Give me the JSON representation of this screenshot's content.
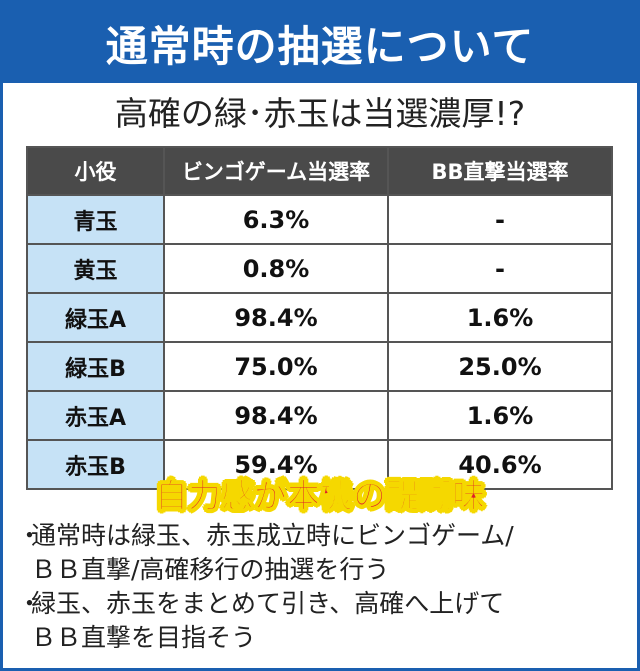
{
  "header": {
    "title": "通常時の抽選について"
  },
  "subtitle": "高確の緑･赤玉は当選濃厚!?",
  "table": {
    "columns": [
      "小役",
      "ビンゴゲーム当選率",
      "BB直撃当選率"
    ],
    "rows": [
      {
        "role": "青玉",
        "bingo": "6.3%",
        "bb": "-"
      },
      {
        "role": "黄玉",
        "bingo": "0.8%",
        "bb": "-"
      },
      {
        "role": "緑玉A",
        "bingo": "98.4%",
        "bb": "1.6%"
      },
      {
        "role": "緑玉B",
        "bingo": "75.0%",
        "bb": "25.0%"
      },
      {
        "role": "赤玉A",
        "bingo": "98.4%",
        "bb": "1.6%"
      },
      {
        "role": "赤玉B",
        "bingo": "59.4%",
        "bb": "40.6%"
      }
    ]
  },
  "banner": "自力感が本機の醍醐味",
  "notes": {
    "bullet": "・",
    "items": [
      {
        "lines": [
          "通常時は緑玉、赤玉成立時にビンゴゲーム/",
          "ＢＢ直撃/高確移行の抽選を行う"
        ]
      },
      {
        "lines": [
          "緑玉、赤玉をまとめて引き、高確へ上げて",
          "ＢＢ直撃を目指そう"
        ]
      }
    ]
  },
  "colors": {
    "accent_blue": "#1a5fb0",
    "header_row": "#4a4a4a",
    "role_cell": "#c6e2f6",
    "banner_red": "#e01e2a",
    "banner_outline": "#f5d800"
  }
}
